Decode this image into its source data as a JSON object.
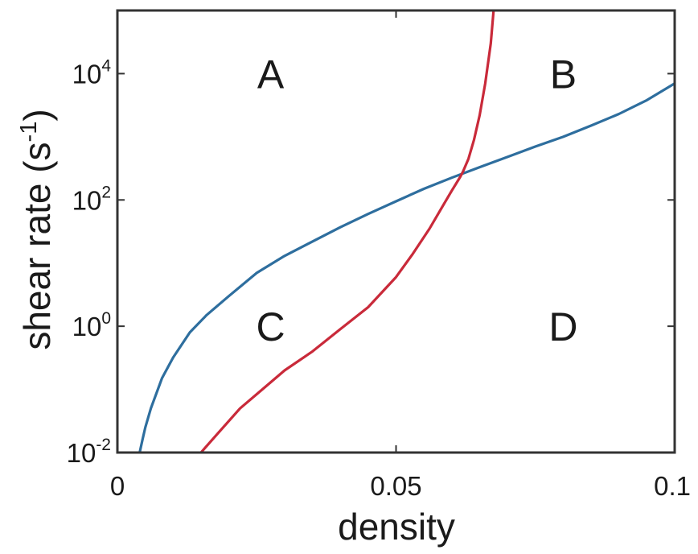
{
  "chart_data": {
    "type": "line",
    "xlabel": "density",
    "ylabel": "shear rate (s",
    "ylabel_sup": "-1",
    "ylabel_close": ")",
    "xlim": [
      0,
      0.1
    ],
    "ylim": [
      0.01,
      100000
    ],
    "yscale": "log",
    "grid": false,
    "legend": "none",
    "x_ticks": [
      {
        "value": 0,
        "label": "0"
      },
      {
        "value": 0.05,
        "label": "0.05"
      },
      {
        "value": 0.1,
        "label": "0.1"
      }
    ],
    "y_ticks": [
      {
        "value": 0.01,
        "base": "10",
        "exp": "-2"
      },
      {
        "value": 1,
        "base": "10",
        "exp": "0"
      },
      {
        "value": 100,
        "base": "10",
        "exp": "2"
      },
      {
        "value": 10000,
        "base": "10",
        "exp": "4"
      }
    ],
    "series": [
      {
        "color": "#2e6e9e",
        "points": [
          [
            0.004,
            0.01
          ],
          [
            0.0045,
            0.016
          ],
          [
            0.005,
            0.025
          ],
          [
            0.006,
            0.05
          ],
          [
            0.008,
            0.15
          ],
          [
            0.01,
            0.32
          ],
          [
            0.013,
            0.8
          ],
          [
            0.016,
            1.5
          ],
          [
            0.02,
            3
          ],
          [
            0.025,
            7
          ],
          [
            0.03,
            13
          ],
          [
            0.035,
            22
          ],
          [
            0.04,
            37
          ],
          [
            0.045,
            60
          ],
          [
            0.05,
            95
          ],
          [
            0.055,
            150
          ],
          [
            0.06,
            225
          ],
          [
            0.065,
            330
          ],
          [
            0.07,
            480
          ],
          [
            0.075,
            700
          ],
          [
            0.08,
            1000
          ],
          [
            0.085,
            1500
          ],
          [
            0.09,
            2300
          ],
          [
            0.095,
            3800
          ],
          [
            0.1,
            7000
          ]
        ]
      },
      {
        "color": "#c92a3a",
        "points": [
          [
            0.015,
            0.01
          ],
          [
            0.018,
            0.02
          ],
          [
            0.022,
            0.05
          ],
          [
            0.026,
            0.1
          ],
          [
            0.03,
            0.2
          ],
          [
            0.035,
            0.4
          ],
          [
            0.04,
            0.9
          ],
          [
            0.045,
            2
          ],
          [
            0.05,
            6
          ],
          [
            0.053,
            14
          ],
          [
            0.056,
            35
          ],
          [
            0.058,
            70
          ],
          [
            0.06,
            140
          ],
          [
            0.0615,
            230
          ],
          [
            0.062,
            280
          ],
          [
            0.063,
            450
          ],
          [
            0.064,
            900
          ],
          [
            0.065,
            2200
          ],
          [
            0.066,
            7000
          ],
          [
            0.067,
            30000
          ],
          [
            0.0675,
            100000
          ]
        ]
      }
    ],
    "regions": [
      {
        "label": "A",
        "x": 0.0275,
        "y": 10000
      },
      {
        "label": "B",
        "x": 0.08,
        "y": 10000
      },
      {
        "label": "C",
        "x": 0.0275,
        "y": 1
      },
      {
        "label": "D",
        "x": 0.08,
        "y": 1
      }
    ]
  }
}
